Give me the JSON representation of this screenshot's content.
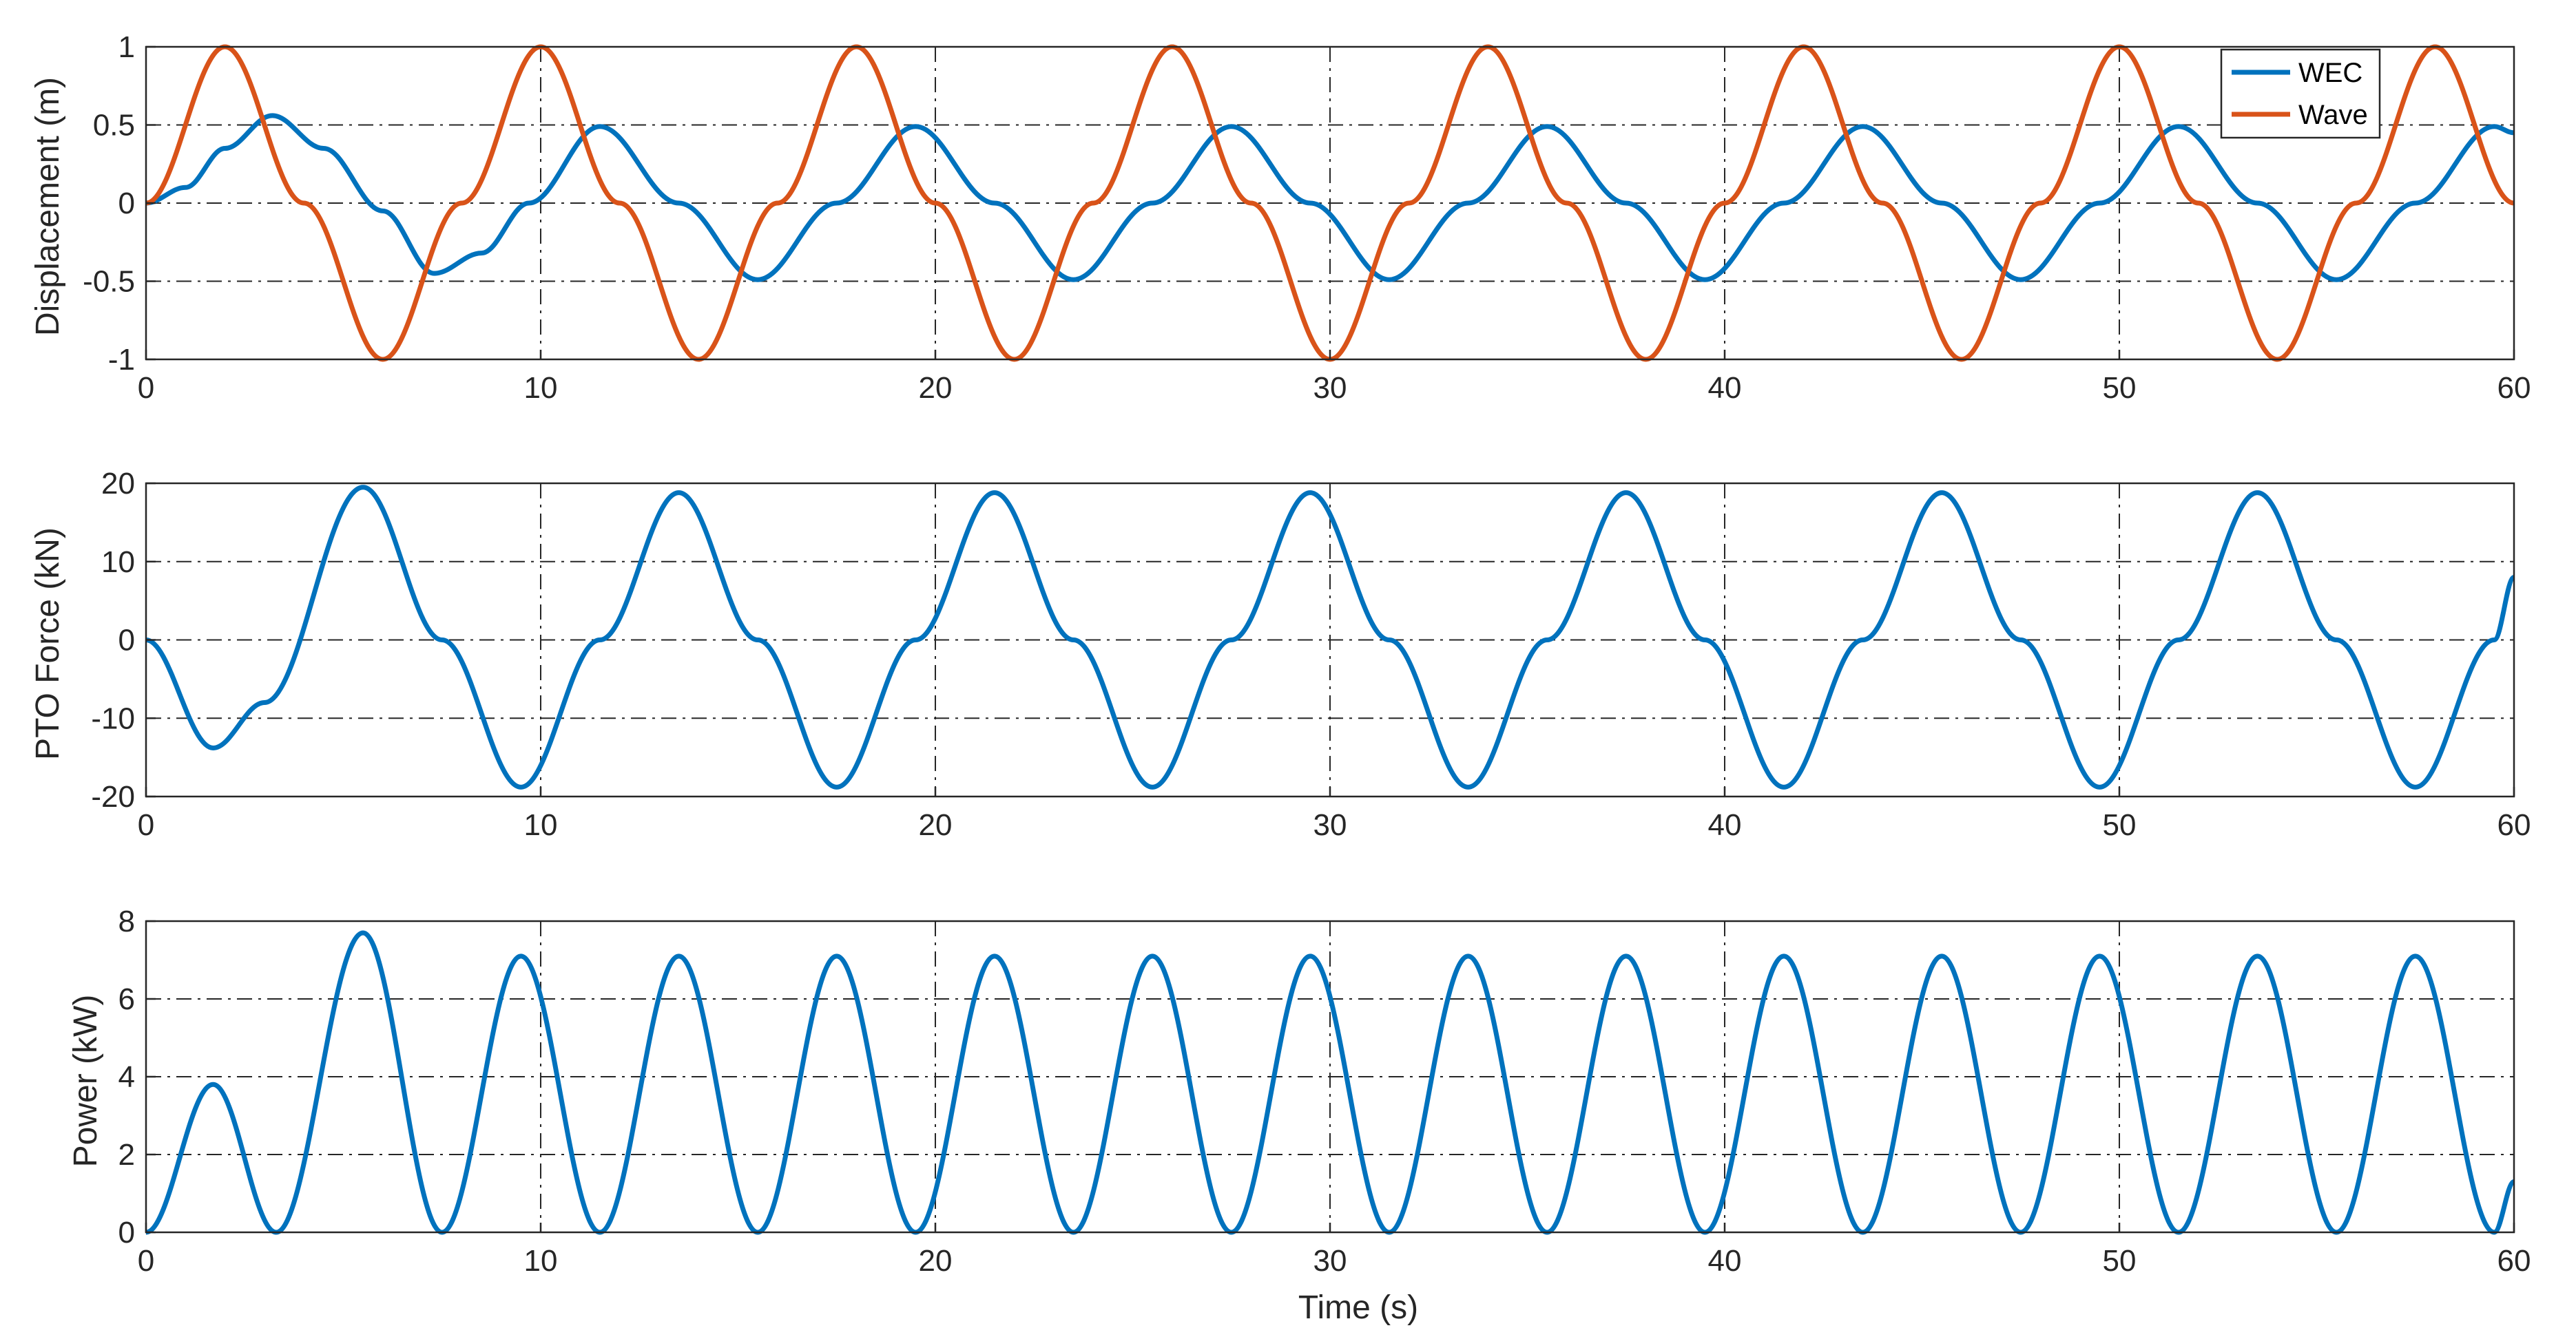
{
  "chart_data": [
    {
      "type": "line",
      "ylabel": "Displacement (m)",
      "xlabel": "",
      "xlim": [
        0,
        60
      ],
      "ylim": [
        -1,
        1
      ],
      "xticks": [
        "0",
        "10",
        "20",
        "30",
        "40",
        "50",
        "60"
      ],
      "yticks": [
        "-1",
        "-0.5",
        "0",
        "0.5",
        "1"
      ],
      "ytick_values": [
        -1,
        -0.5,
        0,
        0.5,
        1
      ],
      "grid": "dashed",
      "legend": {
        "placement": "top-right",
        "entries": [
          "WEC",
          "Wave"
        ]
      },
      "series": [
        {
          "name": "WEC",
          "color": "#0072BD",
          "x": [
            0,
            1,
            2,
            3.2,
            4.5,
            6,
            7.3,
            8.5,
            9.7,
            11.5,
            13.5,
            15.5,
            17.5,
            19.5,
            21.5,
            23.5,
            25.5,
            27.5,
            29.5,
            31.5,
            33.5,
            35.5,
            37.5,
            39.5,
            41.5,
            43.5,
            45.5,
            47.5,
            49.5,
            51.5,
            53.5,
            55.5,
            57.5,
            59.5,
            60
          ],
          "y": [
            0,
            0.1,
            0.35,
            0.56,
            0.35,
            -0.05,
            -0.45,
            -0.32,
            0,
            0.49,
            0,
            -0.49,
            0,
            0.49,
            0,
            -0.49,
            0,
            0.49,
            0,
            -0.49,
            0,
            0.49,
            0,
            -0.49,
            0,
            0.49,
            0,
            -0.49,
            0,
            0.49,
            0,
            -0.49,
            0,
            0.49,
            0.45
          ]
        },
        {
          "name": "Wave",
          "color": "#D95319",
          "x": [
            0,
            2,
            4,
            6,
            8,
            10,
            12,
            14,
            16,
            18,
            20,
            22,
            24,
            26,
            28,
            30,
            32,
            34,
            36,
            38,
            40,
            42,
            44,
            46,
            48,
            50,
            52,
            54,
            56,
            58,
            60
          ],
          "y": [
            0,
            1,
            0,
            -1,
            0,
            1,
            0,
            -1,
            0,
            1,
            0,
            -1,
            0,
            1,
            0,
            -1,
            0,
            1,
            0,
            -1,
            0,
            1,
            0,
            -1,
            0,
            1,
            0,
            -1,
            0,
            1,
            0
          ]
        }
      ]
    },
    {
      "type": "line",
      "ylabel": "PTO Force (kN)",
      "xlabel": "",
      "xlim": [
        0,
        60
      ],
      "ylim": [
        -20,
        20
      ],
      "xticks": [
        "0",
        "10",
        "20",
        "30",
        "40",
        "50",
        "60"
      ],
      "yticks": [
        "-20",
        "-10",
        "0",
        "10",
        "20"
      ],
      "ytick_values": [
        -20,
        -10,
        0,
        10,
        20
      ],
      "grid": "dashed",
      "series": [
        {
          "color": "#0072BD",
          "x": [
            0,
            1.7,
            3,
            5.5,
            7.5,
            9.5,
            11.5,
            13.5,
            15.5,
            17.5,
            19.5,
            21.5,
            23.5,
            25.5,
            27.5,
            29.5,
            31.5,
            33.5,
            35.5,
            37.5,
            39.5,
            41.5,
            43.5,
            45.5,
            47.5,
            49.5,
            51.5,
            53.5,
            55.5,
            57.5,
            59.5,
            60
          ],
          "y": [
            0,
            -13.8,
            -8,
            19.5,
            0,
            -18.8,
            0,
            18.8,
            0,
            -18.8,
            0,
            18.8,
            0,
            -18.8,
            0,
            18.8,
            0,
            -18.8,
            0,
            18.8,
            0,
            -18.8,
            0,
            18.8,
            0,
            -18.8,
            0,
            18.8,
            0,
            -18.8,
            0,
            8
          ]
        }
      ]
    },
    {
      "type": "line",
      "ylabel": "Power (kW)",
      "xlabel": "Time (s)",
      "xlim": [
        0,
        60
      ],
      "ylim": [
        0,
        8
      ],
      "xticks": [
        "0",
        "10",
        "20",
        "30",
        "40",
        "50",
        "60"
      ],
      "yticks": [
        "0",
        "2",
        "4",
        "6",
        "8"
      ],
      "ytick_values": [
        0,
        2,
        4,
        6,
        8
      ],
      "grid": "dashed",
      "series": [
        {
          "color": "#0072BD",
          "x": [
            0,
            1.7,
            3.3,
            5.5,
            7.5,
            9.5,
            11.5,
            13.5,
            15.5,
            17.5,
            19.5,
            21.5,
            23.5,
            25.5,
            27.5,
            29.5,
            31.5,
            33.5,
            35.5,
            37.5,
            39.5,
            41.5,
            43.5,
            45.5,
            47.5,
            49.5,
            51.5,
            53.5,
            55.5,
            57.5,
            59.5,
            60
          ],
          "y": [
            0,
            3.8,
            0,
            7.7,
            0,
            7.1,
            0,
            7.1,
            0,
            7.1,
            0,
            7.1,
            0,
            7.1,
            0,
            7.1,
            0,
            7.1,
            0,
            7.1,
            0,
            7.1,
            0,
            7.1,
            0,
            7.1,
            0,
            7.1,
            0,
            7.1,
            0,
            1.3
          ]
        }
      ]
    }
  ]
}
